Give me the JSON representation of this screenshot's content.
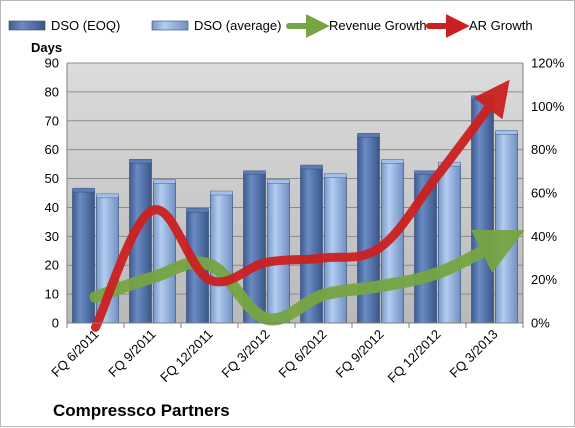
{
  "chart_data": {
    "type": "bar",
    "title": "",
    "footer_title": "Compressco Partners",
    "ylabel_left": "Days",
    "categories": [
      "FQ 6/2011",
      "FQ 9/2011",
      "FQ 12/2011",
      "FQ 3/2012",
      "FQ 6/2012",
      "FQ 9/2012",
      "FQ 12/2012",
      "FQ 3/2013"
    ],
    "ylim_left": [
      0,
      90
    ],
    "yticks_left": [
      "0",
      "10",
      "20",
      "30",
      "40",
      "50",
      "60",
      "70",
      "80",
      "90"
    ],
    "ylim_right": [
      0,
      1.2
    ],
    "yticks_right": [
      "0%",
      "20%",
      "40%",
      "60%",
      "80%",
      "100%",
      "120%"
    ],
    "grid": true,
    "legend_position": "top",
    "bar_series": [
      {
        "name": "DSO (EOQ)",
        "values": [
          46,
          56,
          39,
          52,
          54,
          65,
          52,
          78
        ],
        "color": "#4f6fa6"
      },
      {
        "name": "DSO (average)",
        "values": [
          44,
          49,
          45,
          49,
          51,
          56,
          55,
          66
        ],
        "color": "#8fb0df"
      }
    ],
    "line_series": [
      {
        "name": "Revenue Growth",
        "axis": "right",
        "values": [
          0.12,
          0.21,
          0.27,
          0.02,
          0.13,
          0.17,
          0.23,
          0.36
        ],
        "color": "#77a542"
      },
      {
        "name": "AR Growth",
        "axis": "right",
        "values": [
          -0.02,
          0.52,
          0.2,
          0.28,
          0.3,
          0.35,
          0.68,
          1.03
        ],
        "color": "#cc2020"
      }
    ]
  }
}
